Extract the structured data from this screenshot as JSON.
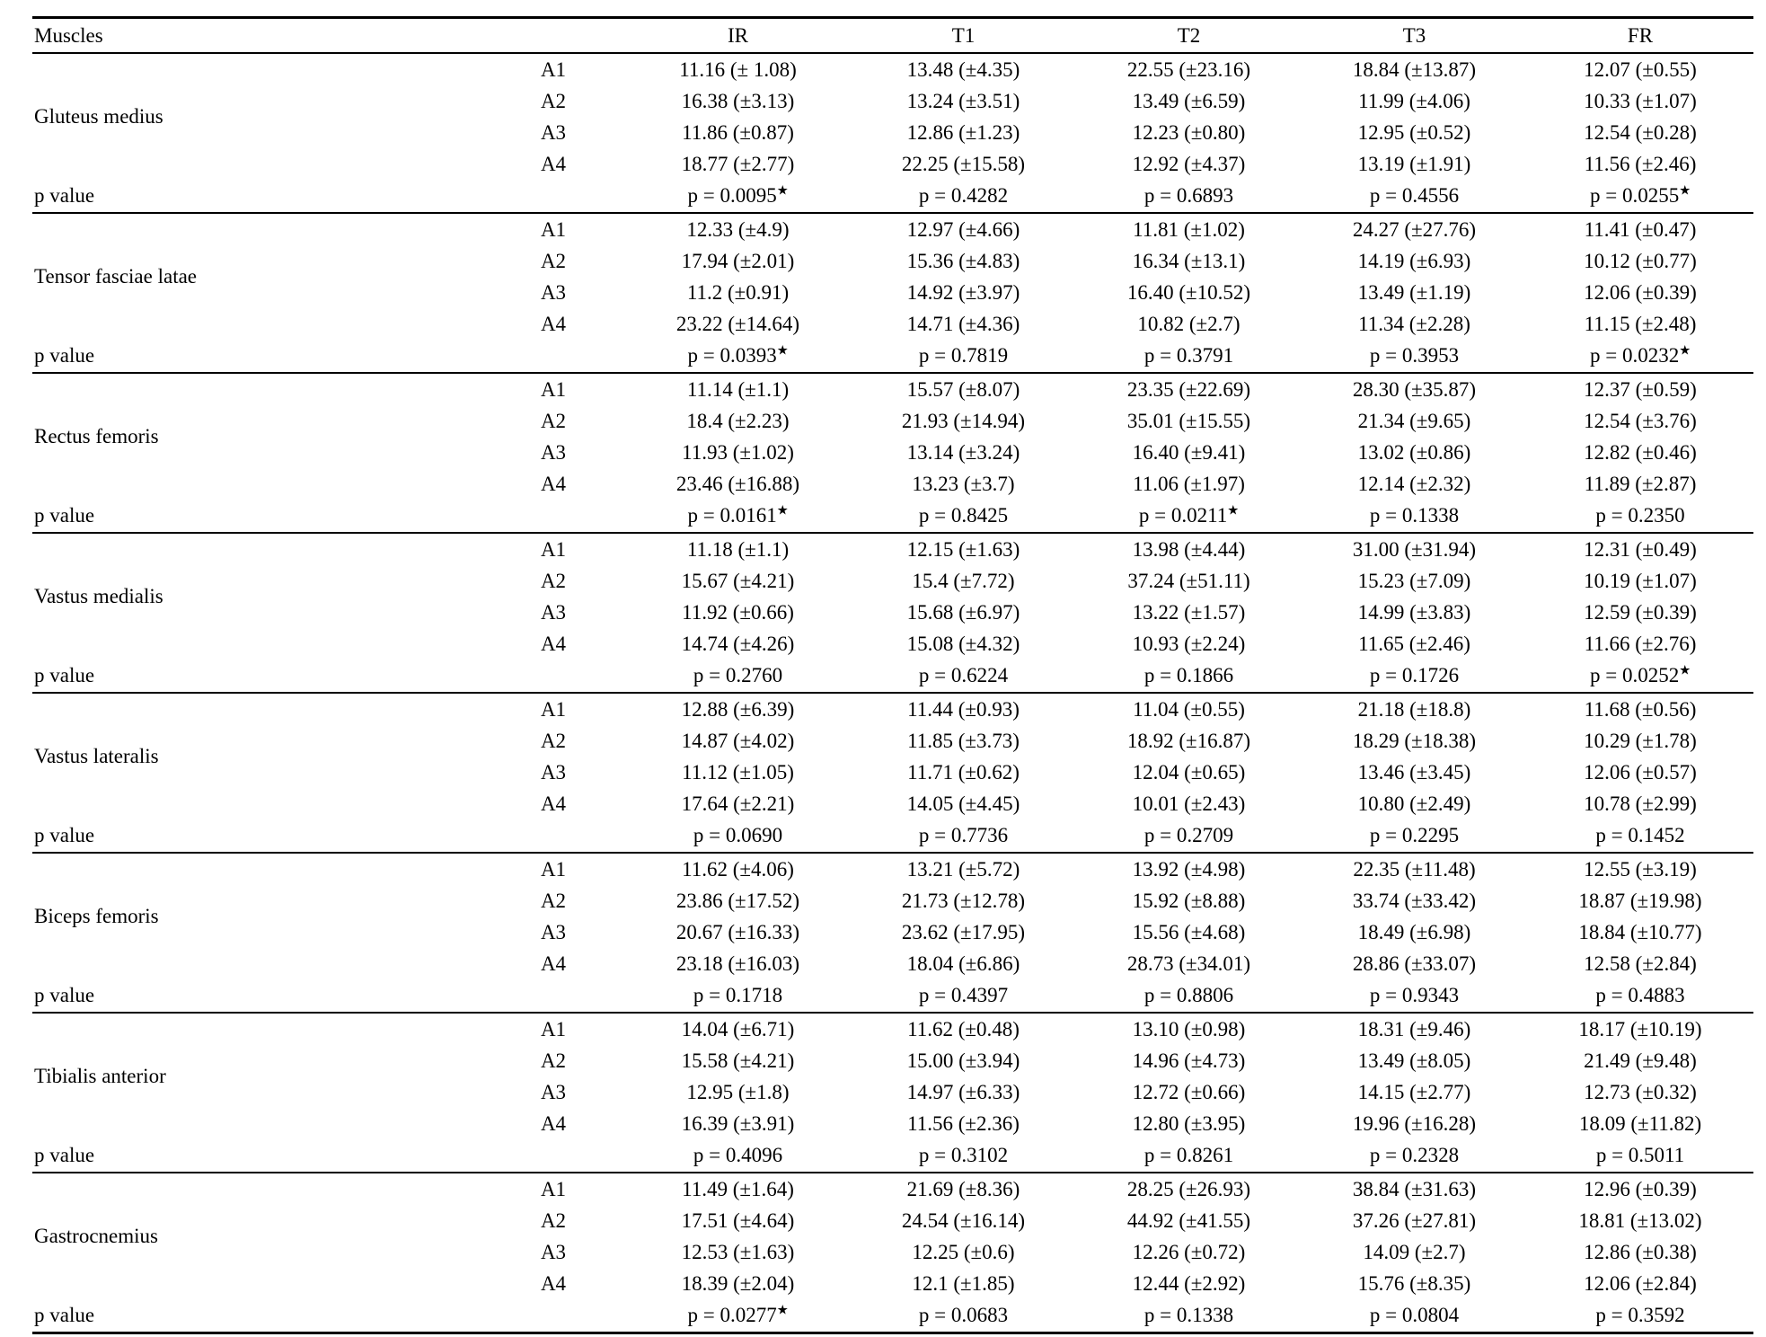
{
  "table": {
    "header": {
      "muscles_label": "Muscles",
      "value_columns": [
        "IR",
        "T1",
        "T2",
        "T3",
        "FR"
      ]
    },
    "p_value_label": "p value",
    "assessments": [
      "A1",
      "A2",
      "A3",
      "A4"
    ],
    "muscles": [
      {
        "name": "Gluteus medius",
        "rows": [
          {
            "assessment": "A1",
            "values": [
              "11.16 (± 1.08)",
              "13.48 (±4.35)",
              "22.55 (±23.16)",
              "18.84 (±13.87)",
              "12.07 (±0.55)"
            ]
          },
          {
            "assessment": "A2",
            "values": [
              "16.38 (±3.13)",
              "13.24 (±3.51)",
              "13.49 (±6.59)",
              "11.99 (±4.06)",
              "10.33 (±1.07)"
            ]
          },
          {
            "assessment": "A3",
            "values": [
              "11.86 (±0.87)",
              "12.86 (±1.23)",
              "12.23 (±0.80)",
              "12.95 (±0.52)",
              "12.54 (±0.28)"
            ]
          },
          {
            "assessment": "A4",
            "values": [
              "18.77 (±2.77)",
              "22.25 (±15.58)",
              "12.92 (±4.37)",
              "13.19 (±1.91)",
              "11.56 (±2.46)"
            ]
          }
        ],
        "p_values": [
          "p = 0.0095★",
          "p = 0.4282",
          "p = 0.6893",
          "p = 0.4556",
          "p = 0.0255★"
        ]
      },
      {
        "name": "Tensor fasciae latae",
        "rows": [
          {
            "assessment": "A1",
            "values": [
              "12.33 (±4.9)",
              "12.97 (±4.66)",
              "11.81 (±1.02)",
              "24.27 (±27.76)",
              "11.41 (±0.47)"
            ]
          },
          {
            "assessment": "A2",
            "values": [
              "17.94 (±2.01)",
              "15.36 (±4.83)",
              "16.34 (±13.1)",
              "14.19 (±6.93)",
              "10.12 (±0.77)"
            ]
          },
          {
            "assessment": "A3",
            "values": [
              "11.2 (±0.91)",
              "14.92 (±3.97)",
              "16.40 (±10.52)",
              "13.49 (±1.19)",
              "12.06 (±0.39)"
            ]
          },
          {
            "assessment": "A4",
            "values": [
              "23.22 (±14.64)",
              "14.71 (±4.36)",
              "10.82 (±2.7)",
              "11.34 (±2.28)",
              "11.15 (±2.48)"
            ]
          }
        ],
        "p_values": [
          "p = 0.0393★",
          "p = 0.7819",
          "p = 0.3791",
          "p = 0.3953",
          "p = 0.0232★"
        ]
      },
      {
        "name": "Rectus femoris",
        "rows": [
          {
            "assessment": "A1",
            "values": [
              "11.14 (±1.1)",
              "15.57 (±8.07)",
              "23.35 (±22.69)",
              "28.30 (±35.87)",
              "12.37 (±0.59)"
            ]
          },
          {
            "assessment": "A2",
            "values": [
              "18.4 (±2.23)",
              "21.93 (±14.94)",
              "35.01 (±15.55)",
              "21.34 (±9.65)",
              "12.54 (±3.76)"
            ]
          },
          {
            "assessment": "A3",
            "values": [
              "11.93 (±1.02)",
              "13.14 (±3.24)",
              "16.40 (±9.41)",
              "13.02 (±0.86)",
              "12.82 (±0.46)"
            ]
          },
          {
            "assessment": "A4",
            "values": [
              "23.46 (±16.88)",
              "13.23 (±3.7)",
              "11.06 (±1.97)",
              "12.14 (±2.32)",
              "11.89 (±2.87)"
            ]
          }
        ],
        "p_values": [
          "p = 0.0161★",
          "p = 0.8425",
          "p = 0.0211★",
          "p = 0.1338",
          "p = 0.2350"
        ]
      },
      {
        "name": "Vastus medialis",
        "rows": [
          {
            "assessment": "A1",
            "values": [
              "11.18 (±1.1)",
              "12.15 (±1.63)",
              "13.98 (±4.44)",
              "31.00 (±31.94)",
              "12.31 (±0.49)"
            ]
          },
          {
            "assessment": "A2",
            "values": [
              "15.67 (±4.21)",
              "15.4 (±7.72)",
              "37.24 (±51.11)",
              "15.23 (±7.09)",
              "10.19 (±1.07)"
            ]
          },
          {
            "assessment": "A3",
            "values": [
              "11.92 (±0.66)",
              "15.68 (±6.97)",
              "13.22 (±1.57)",
              "14.99 (±3.83)",
              "12.59 (±0.39)"
            ]
          },
          {
            "assessment": "A4",
            "values": [
              "14.74 (±4.26)",
              "15.08 (±4.32)",
              "10.93 (±2.24)",
              "11.65 (±2.46)",
              "11.66 (±2.76)"
            ]
          }
        ],
        "p_values": [
          "p = 0.2760",
          "p = 0.6224",
          "p = 0.1866",
          "p = 0.1726",
          "p = 0.0252★"
        ]
      },
      {
        "name": "Vastus lateralis",
        "rows": [
          {
            "assessment": "A1",
            "values": [
              "12.88 (±6.39)",
              "11.44 (±0.93)",
              "11.04 (±0.55)",
              "21.18 (±18.8)",
              "11.68 (±0.56)"
            ]
          },
          {
            "assessment": "A2",
            "values": [
              "14.87 (±4.02)",
              "11.85 (±3.73)",
              "18.92 (±16.87)",
              "18.29 (±18.38)",
              "10.29 (±1.78)"
            ]
          },
          {
            "assessment": "A3",
            "values": [
              "11.12 (±1.05)",
              "11.71 (±0.62)",
              "12.04 (±0.65)",
              "13.46 (±3.45)",
              "12.06 (±0.57)"
            ]
          },
          {
            "assessment": "A4",
            "values": [
              "17.64 (±2.21)",
              "14.05 (±4.45)",
              "10.01 (±2.43)",
              "10.80 (±2.49)",
              "10.78 (±2.99)"
            ]
          }
        ],
        "p_values": [
          "p = 0.0690",
          "p = 0.7736",
          "p = 0.2709",
          "p = 0.2295",
          "p = 0.1452"
        ]
      },
      {
        "name": "Biceps femoris",
        "rows": [
          {
            "assessment": "A1",
            "values": [
              "11.62 (±4.06)",
              "13.21 (±5.72)",
              "13.92 (±4.98)",
              "22.35 (±11.48)",
              "12.55 (±3.19)"
            ]
          },
          {
            "assessment": "A2",
            "values": [
              "23.86 (±17.52)",
              "21.73 (±12.78)",
              "15.92 (±8.88)",
              "33.74 (±33.42)",
              "18.87 (±19.98)"
            ]
          },
          {
            "assessment": "A3",
            "values": [
              "20.67 (±16.33)",
              "23.62 (±17.95)",
              "15.56  (±4.68)",
              "18.49 (±6.98)",
              "18.84 (±10.77)"
            ]
          },
          {
            "assessment": "A4",
            "values": [
              "23.18 (±16.03)",
              "18.04 (±6.86)",
              "28.73  (±34.01)",
              "28.86 (±33.07)",
              "12.58 (±2.84)"
            ]
          }
        ],
        "p_values": [
          "p = 0.1718",
          "p = 0.4397",
          "p = 0.8806",
          "p = 0.9343",
          "p = 0.4883"
        ]
      },
      {
        "name": "Tibialis anterior",
        "rows": [
          {
            "assessment": "A1",
            "values": [
              "14.04 (±6.71)",
              "11.62 (±0.48)",
              "13.10 (±0.98)",
              "18.31 (±9.46)",
              "18.17 (±10.19)"
            ]
          },
          {
            "assessment": "A2",
            "values": [
              "15.58 (±4.21)",
              "15.00 (±3.94)",
              "14.96 (±4.73)",
              "13.49 (±8.05)",
              "21.49 (±9.48)"
            ]
          },
          {
            "assessment": "A3",
            "values": [
              "12.95 (±1.8)",
              "14.97 (±6.33)",
              "12.72 (±0.66)",
              "14.15 (±2.77)",
              "12.73 (±0.32)"
            ]
          },
          {
            "assessment": "A4",
            "values": [
              "16.39 (±3.91)",
              "11.56 (±2.36)",
              "12.80 (±3.95)",
              "19.96 (±16.28)",
              "18.09 (±11.82)"
            ]
          }
        ],
        "p_values": [
          "p = 0.4096",
          "p = 0.3102",
          "p = 0.8261",
          "p = 0.2328",
          "p = 0.5011"
        ]
      },
      {
        "name": "Gastrocnemius",
        "rows": [
          {
            "assessment": "A1",
            "values": [
              "11.49 (±1.64)",
              "21.69 (±8.36)",
              "28.25 (±26.93)",
              "38.84 (±31.63)",
              "12.96 (±0.39)"
            ]
          },
          {
            "assessment": "A2",
            "values": [
              "17.51 (±4.64)",
              "24.54 (±16.14)",
              "44.92 (±41.55)",
              "37.26 (±27.81)",
              "18.81 (±13.02)"
            ]
          },
          {
            "assessment": "A3",
            "values": [
              "12.53 (±1.63)",
              "12.25 (±0.6)",
              "12.26 (±0.72)",
              "14.09 (±2.7)",
              "12.86 (±0.38)"
            ]
          },
          {
            "assessment": "A4",
            "values": [
              "18.39 (±2.04)",
              "12.1 (±1.85)",
              "12.44 (±2.92)",
              "15.76 (±8.35)",
              "12.06 (±2.84)"
            ]
          }
        ],
        "p_values": [
          "p = 0.0277★",
          "p = 0.0683",
          "p = 0.1338",
          "p = 0.0804",
          "p = 0.3592"
        ]
      }
    ]
  }
}
